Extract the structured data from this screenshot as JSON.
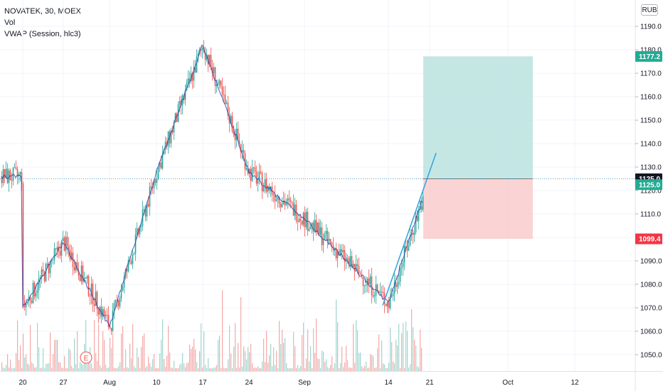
{
  "legend": {
    "symbol_line": "NOVATEK, 30, MOEX",
    "vol_label": "Vol",
    "vwap_label": "VWAP (Session, hlc3)"
  },
  "currency_badge": "RUB",
  "colors": {
    "up": "#26a69a",
    "down": "#ef5350",
    "vwap": "#2a3fa8",
    "trendline": "#2ea3e0",
    "target_zone": "#b2dfdb",
    "stop_zone": "#f8c6c6",
    "grid": "#f0f3fa",
    "text": "#131722"
  },
  "chart_data": {
    "type": "candlestick",
    "x_axis": {
      "tick_labels": [
        "20",
        "27",
        "Aug",
        "10",
        "17",
        "24",
        "Sep",
        "14",
        "21",
        "Oct",
        "12"
      ]
    },
    "y_axis": {
      "range": [
        1043,
        1197
      ],
      "tick_labels": [
        "1050.0",
        "1060.0",
        "1070.0",
        "1080.0",
        "1090.0",
        "1100.0",
        "1110.0",
        "1120.0",
        "1130.0",
        "1140.0",
        "1150.0",
        "1160.0",
        "1170.0",
        "1180.0",
        "1190.0"
      ]
    },
    "price_path": [
      {
        "x": "20",
        "y": 1070
      },
      {
        "x": "27",
        "y": 1098
      },
      {
        "x": "Aug",
        "y": 1062
      },
      {
        "x": "10",
        "y": 1128
      },
      {
        "x": "17",
        "y": 1182
      },
      {
        "x": "24",
        "y": 1128
      },
      {
        "x": "Sep",
        "y": 1108
      },
      {
        "x": "14",
        "y": 1072
      },
      {
        "x": "21",
        "y": 1126
      }
    ],
    "price_badges": [
      {
        "label": "1177.2",
        "value": 1177.2,
        "color": "#22ab94"
      },
      {
        "label": "1125.0",
        "value": 1125.0,
        "color": "#131722"
      },
      {
        "label": "1125.0",
        "value": 1122.5,
        "color": "#22ab94"
      },
      {
        "label": "1099.4",
        "value": 1099.4,
        "color": "#f23645"
      }
    ],
    "position": {
      "entry": 1125.0,
      "target": 1177.2,
      "stop": 1099.4
    },
    "trendline": {
      "from": 1071,
      "to": 1136
    },
    "event_marker": "E",
    "grid": true
  }
}
